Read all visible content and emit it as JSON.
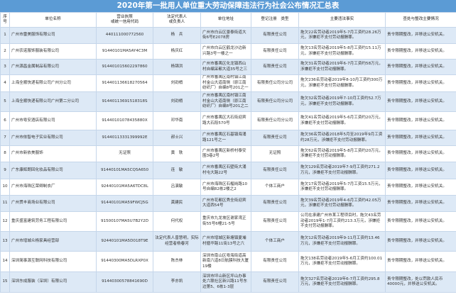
{
  "title": "2020年第一批用人单位重大劳动保障违法行为社会公布情况汇总表",
  "headers": [
    "序号",
    "单位名称",
    "营业执照\n或统一信用代码",
    "法定代表人\n或负责人",
    "单位地址",
    "登记注册　类型",
    "主要违法事实",
    "查处与整改主要情况"
  ],
  "rows": [
    {
      "no": "1",
      "name": "广州市雷美服饰有限公司",
      "code": "440111000772560",
      "rep": "杨　兵",
      "addr": "广州市白云区景泰街道大街6号E2078房",
      "type": "有限责任公司",
      "fact": "拖欠22名劳动者2019年5-7月工资约28.26万元，涉嫌拒不支付劳动报酬罪。",
      "result": "责令限期整改，并移送公安机关。"
    },
    {
      "no": "2",
      "name": "广州农诺服饰服装有限公司",
      "code": "91440101MA5AY4C3M",
      "rep": "杨庆红",
      "addr": "广州市白云区鹤龙沙边新兴路3号一楼之一",
      "type": "有限责任公司",
      "fact": "拖欠13名劳动者2019年5-8月工资约15.11万元，涉嫌拒不支付劳动报酬罪。",
      "result": "责令限期整改，并移送公安机关。"
    },
    {
      "no": "3",
      "name": "广州源昌金属制品有限公司",
      "code": "914401015602297860",
      "rep": "杨锦洪",
      "addr": "广州市番禺区化龙镇西山村自编采都大道35号之三",
      "type": "有限责任公司",
      "fact": "拖欠31名劳动者2019年6-7月工资约58万元，涉嫌拒不支付劳动报酬罪。",
      "result": "责令限期整改，并移送公安机关。"
    },
    {
      "no": "4",
      "name": "上海全顺快递有限公司广州分公司",
      "code": "914401136618270564",
      "rep": "刘劲梢",
      "addr": "广州市番禺区南村镇江南村金山大道南侧（原江南纺织厂）自编8号201之一",
      "type": "有限责任公司分公司",
      "fact": "拖欠236名劳动者2019年8-10月工资约300万元，涉嫌拒不支付劳动报酬罪。",
      "result": "责令限期整改，并移送公安机关。"
    },
    {
      "no": "5",
      "name": "上海全顺快递有限公司广州第二分公司",
      "code": "91440113691518318S",
      "rep": "刘劲梢",
      "addr": "广州市番禺区南村镇江南村金山大道南侧（原江南纺织厂）自编8号201之二",
      "type": "有限责任公司分公司",
      "fact": "拖欠32名劳动者2019年7-10月工资约52.7万元，涉嫌拒不支付劳动报酬罪。",
      "result": "责令限期整改，并移送公安机关。"
    },
    {
      "no": "6",
      "name": "广州市粤安酒店有限公司",
      "code": "91440101078435880X",
      "rep": "邓华南",
      "addr": "广州市番禺区大石街迎宾路大石段570号",
      "type": "有限责任公司分公司",
      "fact": "拖欠41名劳动者2019年5-6月工资约20万元，涉嫌拒不支付劳动报酬罪。",
      "result": "责令限期整改，并移送公安机关。"
    },
    {
      "no": "7",
      "name": "广州市依智电子实业有限公司",
      "code": "91440113331399992E",
      "rep": "郝士兴",
      "addr": "广州市番禺区石基镇海涌路121号之一",
      "type": "有限责任公司",
      "fact": "拖欠36名劳动者2018年5月至2019年9月工资约28万元，涉嫌拒不支付劳动报酬罪。",
      "result": "责令限期整改，并移送公安机关。"
    },
    {
      "no": "8",
      "name": "广州市新依美服饰",
      "code": "无证照",
      "rep": "黄　轶",
      "addr": "广州市番禺区新桥村泰安围3巷2号",
      "type": "无证照",
      "fact": "拖欠62名劳动者2019年5-8月工资约20万元，涉嫌拒不支付劳动报酬罪。",
      "result": "责令限期整改，并移送公安机关。"
    },
    {
      "no": "9",
      "name": "广东康辉朗回化妆品有限公司",
      "code": "91440101MA5CQ5A650",
      "rep": "连　敏",
      "addr": "广州市番禺区石壁街大涌村屯大路22号",
      "type": "有限责任公司",
      "fact": "拖欠129名劳动者2019年7-9月工资约271.2万元，涉嫌拒不支付劳动报酬罪。",
      "result": "责令限期整改，并移送公安机关。"
    },
    {
      "no": "10",
      "name": "广州市海珠区荣卿制衣厂",
      "code": "92440101MA5A6TDC8L",
      "rep": "吕演敏",
      "addr": "广州市海珠区石榴岗路10号自编82栋2楼之2",
      "type": "个体工商户",
      "fact": "拖欠17名劳动者2019年5-7月工资15.5万元，涉嫌拒不支付劳动报酬罪。",
      "result": "责令限期整改，并移送公安机关。"
    },
    {
      "no": "11",
      "name": "广州贯丰商场业有限公司",
      "code": "91440101MA59FWCJ5G",
      "rep": "龚建民",
      "addr": "广州市花都区秀全街迎宾大道西54号",
      "type": "有限责任公司",
      "fact": "拖欠39名劳动者2019年4-6月工资约42.05万元，涉嫌拒不支付劳动报酬罪。",
      "result": "责令限期整改，并移送公安机关。"
    },
    {
      "no": "12",
      "name": "重庆盛富建筑劳务工程有限公司",
      "code": "91500107MA5U7B2Y2D",
      "rep": "何代权",
      "addr": "重庆市九龙坡区谢家湾正街55号6幢21-5号",
      "type": "有限责任公司",
      "fact": "公司在承建广州市某工程项目时，拖欠43名劳动者2019年1-7月工资约213.3万元，涉嫌拒不支付劳动报酬罪。",
      "result": "责令限期整改，并移送公安机关。"
    },
    {
      "no": "13",
      "name": "广州市增城众杨家具经营部",
      "code": "92440101MA5D018T9E",
      "rep": "法定代表人曾慧明，实际经营者杨春河",
      "addr": "广州市增城区新塘镇夏埔村循华路11街13号之六",
      "type": "个体工商户",
      "fact": "拖欠12名劳动者2019年9-11月工资约13.46万元，涉嫌拒不支付劳动报酬罪。",
      "result": "责令限期整改，并移送公安机关。"
    },
    {
      "no": "14",
      "name": "深圳简事源互联网科技有限公司",
      "code": "91440300MA5DLRXP0X",
      "rep": "陈杰林",
      "addr": "深圳市南山区粤海街道高新南六道8日航膜科技大厦19楼",
      "type": "有限责任公司",
      "fact": "拖欠138名劳动者2019年5-6月工资约100.01万元，涉嫌拒不支付劳动报酬罪。",
      "result": "责令限期整改，并移送公安机关。"
    },
    {
      "no": "15",
      "name": "深圳东成服装（深圳）有限公司",
      "code": "91440300578841690D",
      "rep": "李亦凯",
      "addr": "深圳市坪山新区坪山办事处六联社区新兴路11号东边第5、6栋1-3层",
      "type": "有限责任公司",
      "fact": "拖欠327名劳动者2019年6-7月工资约295.8万元，涉嫌拒不支付劳动报酬罪。",
      "result": "责令限期整改，处以罚款人民币40000元，并移送公安机关。"
    }
  ]
}
